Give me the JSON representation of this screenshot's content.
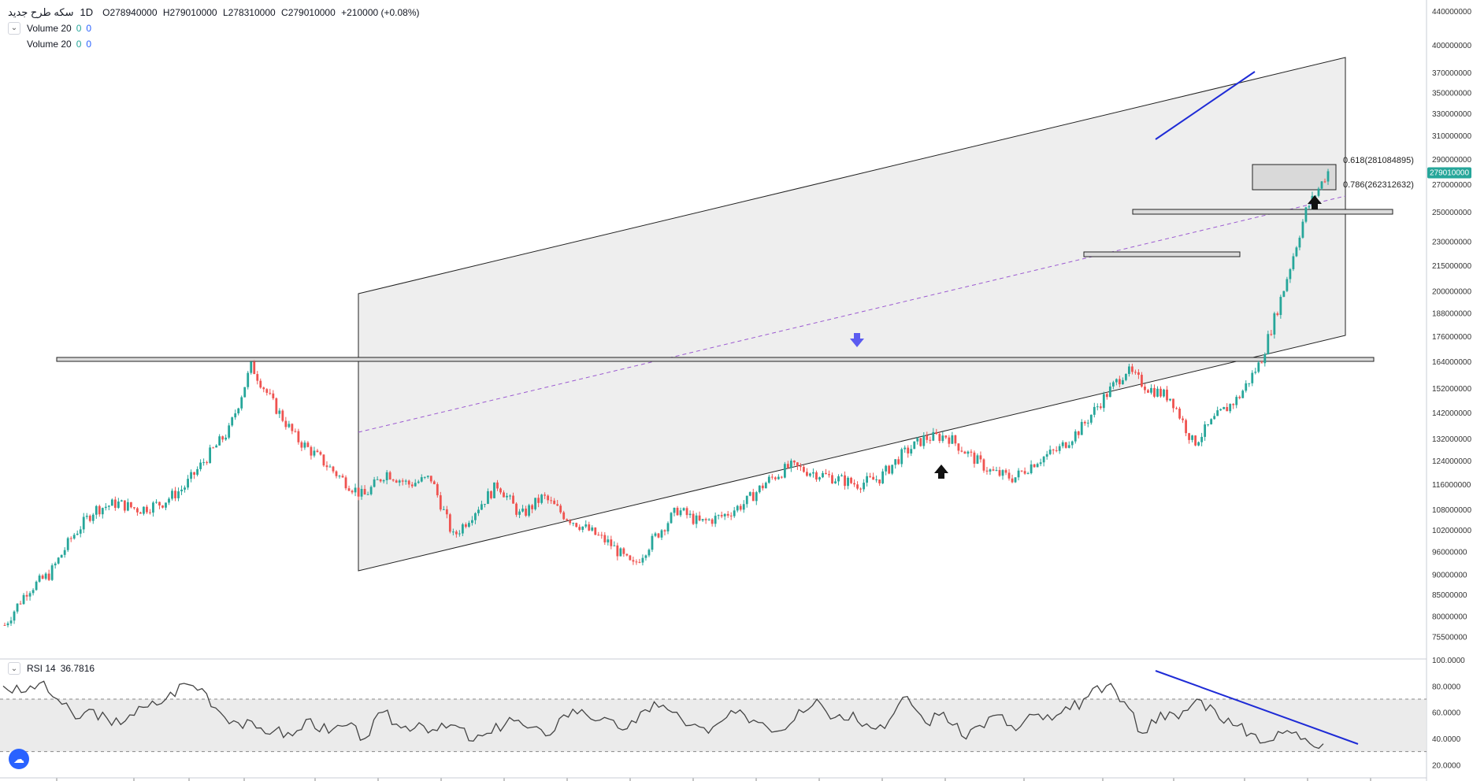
{
  "legend": {
    "symbol": "سکه طرح جدید",
    "timeframe": "1D",
    "open": "O278940000",
    "high": "H279010000",
    "low": "L278310000",
    "close": "C279010000",
    "change": "+210000 (+0.08%)",
    "volume_label": "Volume 20",
    "volume_a": "0",
    "volume_b": "0",
    "volume2_label": "Volume 20",
    "volume2_a": "0",
    "volume2_b": "0"
  },
  "rsi_legend": {
    "label": "RSI 14",
    "value": "36.7816"
  },
  "colors": {
    "up": "#26a69a",
    "down": "#ef5350",
    "channel_fill": "#e8e8e8",
    "trend": "#1e2bd6",
    "midline": "#9c5bd1",
    "price_tag": "#26a69a",
    "arrow_down": "#5b5bf0"
  },
  "chart_data": [
    {
      "type": "line",
      "name": "price",
      "scale": "log",
      "ylim": [
        72000000,
        448000000
      ],
      "y_ticks": [
        "440000000",
        "400000000",
        "370000000",
        "350000000",
        "330000000",
        "310000000",
        "290000000",
        "270000000",
        "250000000",
        "230000000",
        "215000000",
        "200000000",
        "188000000",
        "176000000",
        "164000000",
        "152000000",
        "142000000",
        "132000000",
        "124000000",
        "116000000",
        "108000000",
        "102000000",
        "96000000",
        "90000000",
        "85000000",
        "80000000",
        "75500000"
      ],
      "last_price_tag": "279010000",
      "fib_labels": [
        "0.618(281084895)",
        "0.786(262312632)"
      ],
      "x": [
        0,
        10,
        20,
        30,
        40,
        50,
        60,
        70,
        80,
        90,
        100,
        110,
        120,
        130,
        140,
        150,
        160,
        170,
        180,
        190,
        200,
        210,
        220,
        230,
        240,
        250,
        260,
        270,
        280,
        290,
        300,
        310,
        320,
        330,
        340,
        350,
        360,
        370,
        380,
        390,
        400,
        410,
        420,
        430,
        440,
        450,
        460,
        470,
        480,
        490,
        500,
        510,
        520,
        530,
        540,
        550,
        560,
        570,
        580,
        590
      ],
      "values": [
        78000000,
        86000000,
        90000000,
        100000000,
        108000000,
        110000000,
        108000000,
        110000000,
        115000000,
        125000000,
        135000000,
        162000000,
        145000000,
        132000000,
        125000000,
        118000000,
        112000000,
        120000000,
        116000000,
        118000000,
        100000000,
        108000000,
        116000000,
        106000000,
        112000000,
        106000000,
        102000000,
        98000000,
        92000000,
        100000000,
        108000000,
        104000000,
        106000000,
        110000000,
        117000000,
        122000000,
        120000000,
        118000000,
        116000000,
        118000000,
        126000000,
        132000000,
        133000000,
        126000000,
        120000000,
        118000000,
        124000000,
        128000000,
        136000000,
        148000000,
        160000000,
        152000000,
        148000000,
        130000000,
        140000000,
        148000000,
        164000000,
        200000000,
        250000000,
        280000000
      ]
    },
    {
      "type": "line",
      "name": "RSI 14",
      "ylim": [
        10,
        100
      ],
      "y_ticks": [
        "100.0000",
        "80.0000",
        "60.0000",
        "40.0000",
        "20.0000"
      ],
      "bands": [
        30,
        70
      ],
      "values": [
        80,
        75,
        82,
        70,
        55,
        62,
        50,
        58,
        64,
        70,
        82,
        78,
        60,
        52,
        48,
        46,
        42,
        55,
        44,
        50,
        40,
        60,
        48,
        52,
        46,
        50,
        38,
        44,
        56,
        48,
        42,
        58,
        62,
        54,
        48,
        52,
        68,
        60,
        50,
        44,
        56,
        58,
        52,
        46,
        62,
        70,
        56,
        60,
        48,
        54,
        72,
        52,
        60,
        42,
        50,
        58,
        46,
        58,
        54,
        62,
        72,
        80,
        68,
        44,
        60,
        55,
        70,
        62,
        50,
        44,
        38,
        46,
        40,
        36
      ]
    }
  ]
}
